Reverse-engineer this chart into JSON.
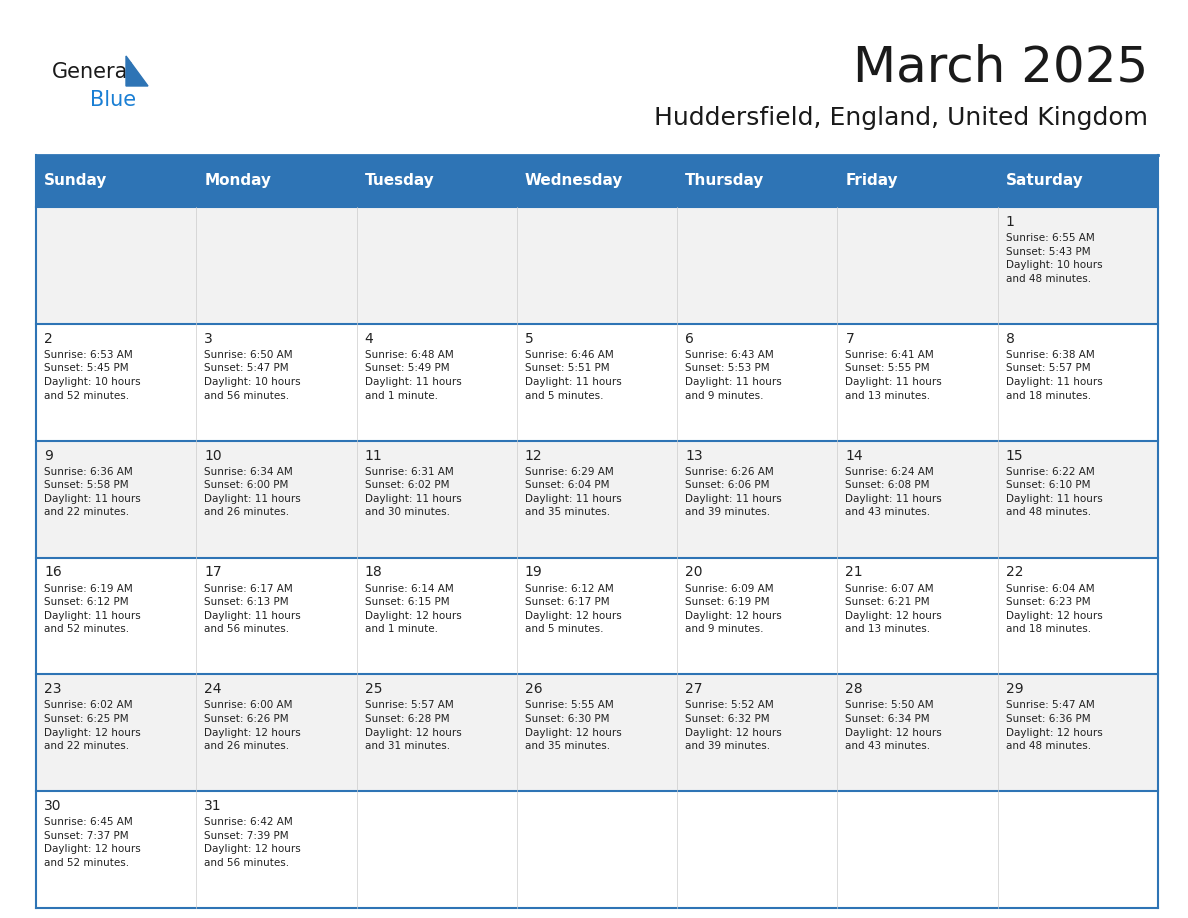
{
  "title": "March 2025",
  "subtitle": "Huddersfield, England, United Kingdom",
  "header_color": "#2E74B5",
  "header_text_color": "#FFFFFF",
  "days_of_week": [
    "Sunday",
    "Monday",
    "Tuesday",
    "Wednesday",
    "Thursday",
    "Friday",
    "Saturday"
  ],
  "background_color": "#FFFFFF",
  "alt_row_color": "#F2F2F2",
  "cell_text_color": "#222222",
  "border_color": "#2E74B5",
  "calendar_data": [
    [
      {
        "day": null,
        "info": null
      },
      {
        "day": null,
        "info": null
      },
      {
        "day": null,
        "info": null
      },
      {
        "day": null,
        "info": null
      },
      {
        "day": null,
        "info": null
      },
      {
        "day": null,
        "info": null
      },
      {
        "day": 1,
        "info": "Sunrise: 6:55 AM\nSunset: 5:43 PM\nDaylight: 10 hours\nand 48 minutes."
      }
    ],
    [
      {
        "day": 2,
        "info": "Sunrise: 6:53 AM\nSunset: 5:45 PM\nDaylight: 10 hours\nand 52 minutes."
      },
      {
        "day": 3,
        "info": "Sunrise: 6:50 AM\nSunset: 5:47 PM\nDaylight: 10 hours\nand 56 minutes."
      },
      {
        "day": 4,
        "info": "Sunrise: 6:48 AM\nSunset: 5:49 PM\nDaylight: 11 hours\nand 1 minute."
      },
      {
        "day": 5,
        "info": "Sunrise: 6:46 AM\nSunset: 5:51 PM\nDaylight: 11 hours\nand 5 minutes."
      },
      {
        "day": 6,
        "info": "Sunrise: 6:43 AM\nSunset: 5:53 PM\nDaylight: 11 hours\nand 9 minutes."
      },
      {
        "day": 7,
        "info": "Sunrise: 6:41 AM\nSunset: 5:55 PM\nDaylight: 11 hours\nand 13 minutes."
      },
      {
        "day": 8,
        "info": "Sunrise: 6:38 AM\nSunset: 5:57 PM\nDaylight: 11 hours\nand 18 minutes."
      }
    ],
    [
      {
        "day": 9,
        "info": "Sunrise: 6:36 AM\nSunset: 5:58 PM\nDaylight: 11 hours\nand 22 minutes."
      },
      {
        "day": 10,
        "info": "Sunrise: 6:34 AM\nSunset: 6:00 PM\nDaylight: 11 hours\nand 26 minutes."
      },
      {
        "day": 11,
        "info": "Sunrise: 6:31 AM\nSunset: 6:02 PM\nDaylight: 11 hours\nand 30 minutes."
      },
      {
        "day": 12,
        "info": "Sunrise: 6:29 AM\nSunset: 6:04 PM\nDaylight: 11 hours\nand 35 minutes."
      },
      {
        "day": 13,
        "info": "Sunrise: 6:26 AM\nSunset: 6:06 PM\nDaylight: 11 hours\nand 39 minutes."
      },
      {
        "day": 14,
        "info": "Sunrise: 6:24 AM\nSunset: 6:08 PM\nDaylight: 11 hours\nand 43 minutes."
      },
      {
        "day": 15,
        "info": "Sunrise: 6:22 AM\nSunset: 6:10 PM\nDaylight: 11 hours\nand 48 minutes."
      }
    ],
    [
      {
        "day": 16,
        "info": "Sunrise: 6:19 AM\nSunset: 6:12 PM\nDaylight: 11 hours\nand 52 minutes."
      },
      {
        "day": 17,
        "info": "Sunrise: 6:17 AM\nSunset: 6:13 PM\nDaylight: 11 hours\nand 56 minutes."
      },
      {
        "day": 18,
        "info": "Sunrise: 6:14 AM\nSunset: 6:15 PM\nDaylight: 12 hours\nand 1 minute."
      },
      {
        "day": 19,
        "info": "Sunrise: 6:12 AM\nSunset: 6:17 PM\nDaylight: 12 hours\nand 5 minutes."
      },
      {
        "day": 20,
        "info": "Sunrise: 6:09 AM\nSunset: 6:19 PM\nDaylight: 12 hours\nand 9 minutes."
      },
      {
        "day": 21,
        "info": "Sunrise: 6:07 AM\nSunset: 6:21 PM\nDaylight: 12 hours\nand 13 minutes."
      },
      {
        "day": 22,
        "info": "Sunrise: 6:04 AM\nSunset: 6:23 PM\nDaylight: 12 hours\nand 18 minutes."
      }
    ],
    [
      {
        "day": 23,
        "info": "Sunrise: 6:02 AM\nSunset: 6:25 PM\nDaylight: 12 hours\nand 22 minutes."
      },
      {
        "day": 24,
        "info": "Sunrise: 6:00 AM\nSunset: 6:26 PM\nDaylight: 12 hours\nand 26 minutes."
      },
      {
        "day": 25,
        "info": "Sunrise: 5:57 AM\nSunset: 6:28 PM\nDaylight: 12 hours\nand 31 minutes."
      },
      {
        "day": 26,
        "info": "Sunrise: 5:55 AM\nSunset: 6:30 PM\nDaylight: 12 hours\nand 35 minutes."
      },
      {
        "day": 27,
        "info": "Sunrise: 5:52 AM\nSunset: 6:32 PM\nDaylight: 12 hours\nand 39 minutes."
      },
      {
        "day": 28,
        "info": "Sunrise: 5:50 AM\nSunset: 6:34 PM\nDaylight: 12 hours\nand 43 minutes."
      },
      {
        "day": 29,
        "info": "Sunrise: 5:47 AM\nSunset: 6:36 PM\nDaylight: 12 hours\nand 48 minutes."
      }
    ],
    [
      {
        "day": 30,
        "info": "Sunrise: 6:45 AM\nSunset: 7:37 PM\nDaylight: 12 hours\nand 52 minutes."
      },
      {
        "day": 31,
        "info": "Sunrise: 6:42 AM\nSunset: 7:39 PM\nDaylight: 12 hours\nand 56 minutes."
      },
      {
        "day": null,
        "info": null
      },
      {
        "day": null,
        "info": null
      },
      {
        "day": null,
        "info": null
      },
      {
        "day": null,
        "info": null
      },
      {
        "day": null,
        "info": null
      }
    ]
  ],
  "logo_color_general": "#1a1a1a",
  "logo_color_blue": "#1a7fd4",
  "logo_triangle_color": "#2E74B5",
  "title_fontsize": 36,
  "subtitle_fontsize": 18,
  "header_fontsize": 11,
  "day_number_fontsize": 10,
  "info_fontsize": 7.5
}
